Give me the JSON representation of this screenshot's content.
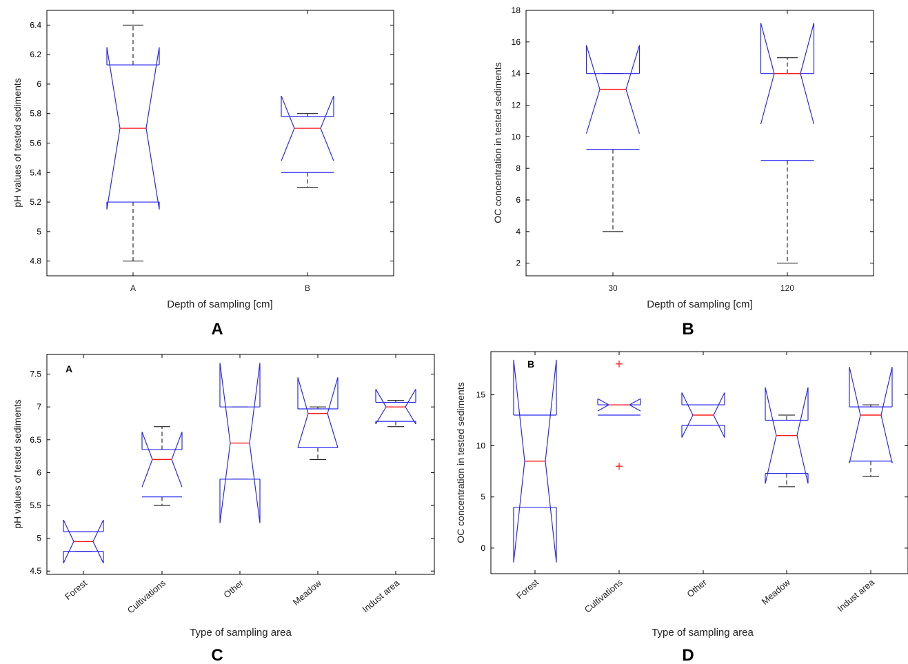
{
  "figure": {
    "panel_labels": [
      "A",
      "B",
      "C",
      "D"
    ]
  },
  "colors": {
    "box": "#2828f0",
    "median": "#ff1a1a",
    "whisker": "#000000",
    "outlier": "#ff1a1a",
    "axes": "#000000"
  },
  "chart_data": [
    {
      "panel": "A",
      "type": "boxplot",
      "notched": true,
      "title": "",
      "inset_label": "",
      "xlabel": "Depth of sampling [cm]",
      "ylabel": "pH values of tested sediments",
      "ylim": [
        4.7,
        6.5
      ],
      "yticks": [
        4.8,
        5,
        5.2,
        5.4,
        5.6,
        5.8,
        6,
        6.2,
        6.4
      ],
      "grid": false,
      "categories": [
        "A",
        "B"
      ],
      "boxes": [
        {
          "whisker_low": 4.8,
          "q1": 5.2,
          "median": 5.7,
          "q3": 6.13,
          "whisker_high": 6.4,
          "notch_low": 5.15,
          "notch_high": 6.25,
          "outliers": []
        },
        {
          "whisker_low": 5.3,
          "q1": 5.4,
          "median": 5.7,
          "q3": 5.78,
          "whisker_high": 5.8,
          "notch_low": 5.48,
          "notch_high": 5.92,
          "outliers": []
        }
      ]
    },
    {
      "panel": "B",
      "type": "boxplot",
      "notched": true,
      "title": "",
      "inset_label": "",
      "xlabel": "Depth of sampling [cm]",
      "ylabel": "OC concentration in tested sediments",
      "ylim": [
        1.2,
        18
      ],
      "yticks": [
        2,
        4,
        6,
        8,
        10,
        12,
        14,
        16,
        18
      ],
      "grid": false,
      "categories": [
        "30",
        "120"
      ],
      "boxes": [
        {
          "whisker_low": 4,
          "q1": 9.2,
          "median": 13,
          "q3": 14,
          "whisker_high": 14,
          "notch_low": 10.2,
          "notch_high": 15.8,
          "outliers": []
        },
        {
          "whisker_low": 2,
          "q1": 8.5,
          "median": 14,
          "q3": 14,
          "whisker_high": 15,
          "notch_low": 10.8,
          "notch_high": 17.2,
          "outliers": []
        }
      ]
    },
    {
      "panel": "C",
      "type": "boxplot",
      "notched": true,
      "title": "",
      "inset_label": "A",
      "xlabel": "Type of sampling area",
      "ylabel": "pH values of tested sediments",
      "ylim": [
        4.45,
        7.8
      ],
      "yticks": [
        4.5,
        5,
        5.5,
        6,
        6.5,
        7,
        7.5
      ],
      "grid": false,
      "categories": [
        "Forest",
        "Cultivations",
        "Other",
        "Meadow",
        "Indust area"
      ],
      "boxes": [
        {
          "whisker_low": 4.8,
          "q1": 4.8,
          "median": 4.95,
          "q3": 5.1,
          "whisker_high": 5.1,
          "notch_low": 4.62,
          "notch_high": 5.28,
          "outliers": []
        },
        {
          "whisker_low": 5.5,
          "q1": 5.63,
          "median": 6.2,
          "q3": 6.35,
          "whisker_high": 6.7,
          "notch_low": 5.78,
          "notch_high": 6.62,
          "outliers": []
        },
        {
          "whisker_low": 5.9,
          "q1": 5.9,
          "median": 6.45,
          "q3": 7.0,
          "whisker_high": 7.0,
          "notch_low": 5.23,
          "notch_high": 7.67,
          "outliers": []
        },
        {
          "whisker_low": 6.2,
          "q1": 6.38,
          "median": 6.9,
          "q3": 6.97,
          "whisker_high": 7.0,
          "notch_low": 6.38,
          "notch_high": 7.45,
          "outliers": []
        },
        {
          "whisker_low": 6.7,
          "q1": 6.78,
          "median": 7.0,
          "q3": 7.07,
          "whisker_high": 7.1,
          "notch_low": 6.74,
          "notch_high": 7.27,
          "outliers": []
        }
      ]
    },
    {
      "panel": "D",
      "type": "boxplot",
      "notched": true,
      "title": "",
      "inset_label": "B",
      "xlabel": "Type of sampling area",
      "ylabel": "OC concentration in tested sediments",
      "ylim": [
        -2.5,
        19.2
      ],
      "yticks": [
        0,
        5,
        10,
        15
      ],
      "grid": false,
      "categories": [
        "Forest",
        "Cultivations",
        "Other",
        "Meadow",
        "Indust area"
      ],
      "boxes": [
        {
          "whisker_low": 4,
          "q1": 4,
          "median": 8.5,
          "q3": 13,
          "whisker_high": 13,
          "notch_low": -1.4,
          "notch_high": 18.4,
          "outliers": []
        },
        {
          "whisker_low": 13,
          "q1": 13,
          "median": 14,
          "q3": 14,
          "whisker_high": 14,
          "notch_low": 13.4,
          "notch_high": 14.6,
          "outliers": [
            18,
            8
          ]
        },
        {
          "whisker_low": 12,
          "q1": 12,
          "median": 13,
          "q3": 14,
          "whisker_high": 14,
          "notch_low": 10.8,
          "notch_high": 15.2,
          "outliers": []
        },
        {
          "whisker_low": 6,
          "q1": 7.3,
          "median": 11,
          "q3": 12.5,
          "whisker_high": 13,
          "notch_low": 6.3,
          "notch_high": 15.7,
          "outliers": []
        },
        {
          "whisker_low": 7,
          "q1": 8.5,
          "median": 13,
          "q3": 13.8,
          "whisker_high": 14,
          "notch_low": 8.3,
          "notch_high": 17.7,
          "outliers": []
        }
      ]
    }
  ]
}
